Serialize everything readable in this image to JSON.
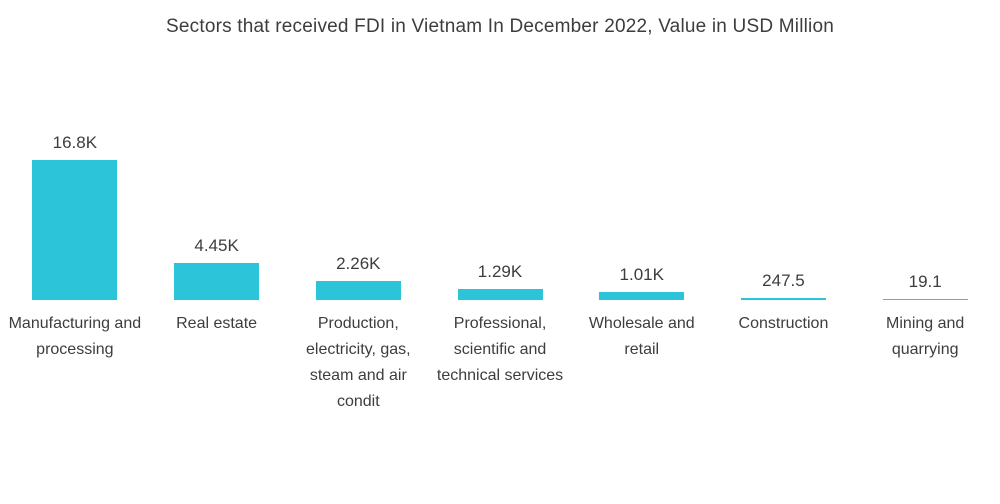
{
  "title": "Sectors that received FDI in Vietnam In December 2022, Value in USD Million",
  "colors": {
    "bar": "#2bc4d8",
    "text": "#3d3d3d",
    "background": "#ffffff"
  },
  "chart_data": {
    "type": "bar",
    "title": "Sectors that received FDI in Vietnam In December 2022, Value in USD Million",
    "xlabel": "",
    "ylabel": "Value in USD Million",
    "ylim": [
      0,
      16800
    ],
    "grid": false,
    "legend": false,
    "categories": [
      "Manufacturing and processing",
      "Real estate",
      "Production, electricity, gas, steam and air condit",
      "Professional, scientific and technical services",
      "Wholesale and retail",
      "Construction",
      "Mining and quarrying"
    ],
    "values": [
      16800,
      4450,
      2260,
      1290,
      1010,
      247.5,
      19.1
    ],
    "value_labels": [
      "16.8K",
      "4.45K",
      "2.26K",
      "1.29K",
      "1.01K",
      "247.5",
      "19.1"
    ]
  }
}
